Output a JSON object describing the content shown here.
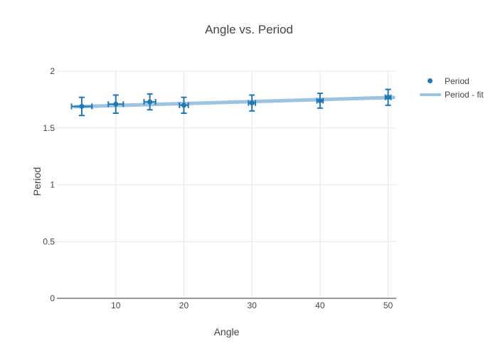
{
  "title": "Angle vs. Period",
  "colors": {
    "text": "#444444",
    "marker_blue": "#1f77b4",
    "fit_blue": "#9cc3e0",
    "grid": "#e8e8e8",
    "zeroline": "#999999",
    "background": "#ffffff"
  },
  "legend": {
    "items": [
      {
        "label": "Period",
        "swatch": "dot-marker"
      },
      {
        "label": "Period - fit",
        "swatch": "line"
      }
    ]
  },
  "chart_data": {
    "type": "scatter",
    "title": "Angle vs. Period",
    "xlabel": "Angle",
    "ylabel": "Period",
    "xlim": [
      1.35,
      51.2
    ],
    "ylim": [
      0,
      2.0
    ],
    "xticks": [
      10,
      20,
      30,
      40,
      50
    ],
    "yticks": [
      0,
      0.5,
      1,
      1.5,
      2
    ],
    "grid": true,
    "legend_position": "right",
    "series": [
      {
        "name": "Period",
        "mode": "markers",
        "x": [
          5,
          10,
          15,
          20,
          30,
          40,
          50
        ],
        "y": [
          1.69,
          1.71,
          1.73,
          1.7,
          1.72,
          1.74,
          1.77
        ],
        "error_y": [
          0.08,
          0.08,
          0.07,
          0.07,
          0.07,
          0.065,
          0.07
        ],
        "error_x": [
          1.5,
          1.1,
          0.85,
          0.65,
          0.5,
          0.45,
          0.4
        ],
        "color": "#1f77b4"
      },
      {
        "name": "Period - fit",
        "mode": "line",
        "x": [
          4.0,
          50.8
        ],
        "y": [
          1.687,
          1.769
        ],
        "color": "#9cc3e0",
        "width": 5
      }
    ]
  }
}
